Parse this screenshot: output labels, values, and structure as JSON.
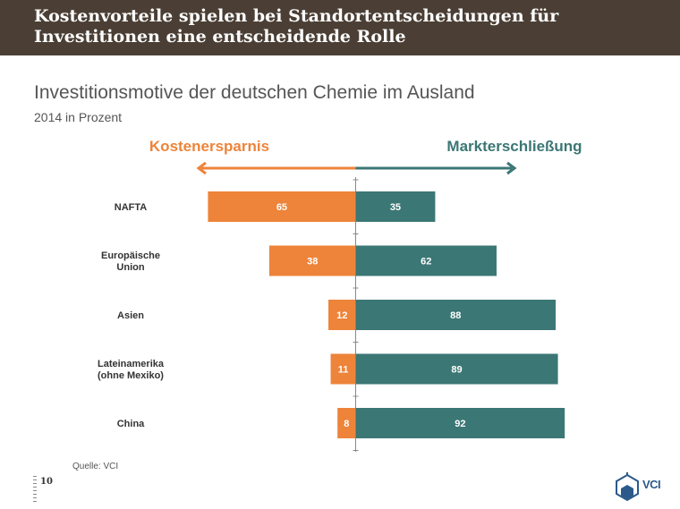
{
  "header": {
    "line1": "Kostenvorteile spielen bei Standortentscheidungen für",
    "line2": "Investitionen eine entscheidende Rolle"
  },
  "chart_data": {
    "type": "bar",
    "orientation": "diverging-horizontal",
    "title": "Investitionsmotive der deutschen Chemie im Ausland",
    "subtitle": "2014 in Prozent",
    "categories": [
      "NAFTA",
      "Europäische\nUnion",
      "Asien",
      "Lateinamerika\n(ohne Mexiko)",
      "China"
    ],
    "series": [
      {
        "name": "Kostenersparnis",
        "color": "#ed843a",
        "direction": "left",
        "values": [
          65,
          38,
          12,
          11,
          8
        ]
      },
      {
        "name": "Markterschließung",
        "color": "#3b7774",
        "direction": "right",
        "values": [
          35,
          62,
          88,
          89,
          92
        ]
      }
    ],
    "xlim": [
      0,
      100
    ],
    "legend": "top (arrows)"
  },
  "footer": {
    "source": "Quelle: VCI",
    "page_number": "10",
    "logo_text": "VCI"
  },
  "colors": {
    "header_bg": "#4b3f35",
    "cost": "#ed843a",
    "market": "#3b7774"
  }
}
